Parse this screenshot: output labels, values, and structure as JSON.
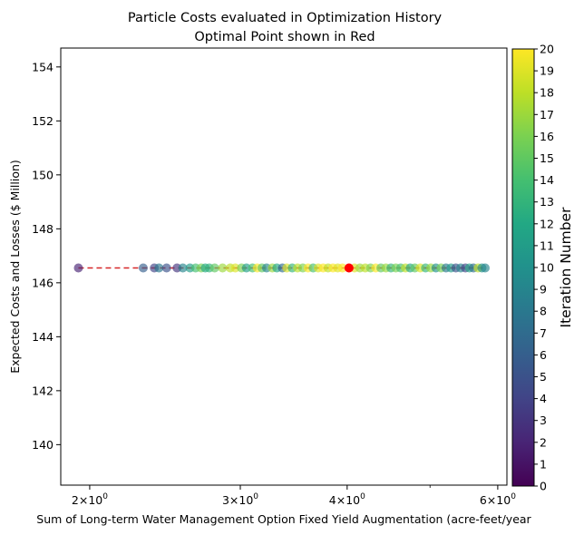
{
  "chart_data": {
    "type": "scatter",
    "title": [
      "Particle Costs evaluated in Optimization History",
      "Optimal Point shown in Red"
    ],
    "xlabel": "Sum of Long-term Water Management Option Fixed Yield Augmentation (acre-feet/year",
    "ylabel": "Expected Costs and Losses ($ Million)",
    "x_scale": "log",
    "xlim": [
      1.85,
      6.15
    ],
    "ylim": [
      138.5,
      154.7
    ],
    "x_major_ticks": [
      {
        "value": 2,
        "base": "2",
        "exp": "0"
      },
      {
        "value": 3,
        "base": "3",
        "exp": "0"
      },
      {
        "value": 4,
        "base": "4",
        "exp": "0"
      },
      {
        "value": 6,
        "base": "6",
        "exp": "0"
      }
    ],
    "x_minor_ticks": [
      5
    ],
    "times_sign": "×",
    "y_ticks": [
      "140",
      "142",
      "144",
      "146",
      "148",
      "150",
      "152",
      "154"
    ],
    "grid": false,
    "points": [
      {
        "x": 1.94,
        "y": 146.55,
        "iter": 2
      },
      {
        "x": 2.31,
        "y": 146.55,
        "iter": 6
      },
      {
        "x": 2.38,
        "y": 146.55,
        "iter": 4
      },
      {
        "x": 2.41,
        "y": 146.55,
        "iter": 8
      },
      {
        "x": 2.46,
        "y": 146.55,
        "iter": 5
      },
      {
        "x": 2.53,
        "y": 146.55,
        "iter": 3
      },
      {
        "x": 2.57,
        "y": 146.55,
        "iter": 9
      },
      {
        "x": 2.62,
        "y": 146.55,
        "iter": 11
      },
      {
        "x": 2.66,
        "y": 146.55,
        "iter": 14
      },
      {
        "x": 2.7,
        "y": 146.55,
        "iter": 16
      },
      {
        "x": 2.73,
        "y": 146.55,
        "iter": 12
      },
      {
        "x": 2.76,
        "y": 146.55,
        "iter": 13
      },
      {
        "x": 2.8,
        "y": 146.55,
        "iter": 15
      },
      {
        "x": 2.86,
        "y": 146.55,
        "iter": 17
      },
      {
        "x": 2.92,
        "y": 146.55,
        "iter": 18
      },
      {
        "x": 2.96,
        "y": 146.55,
        "iter": 19
      },
      {
        "x": 3.01,
        "y": 146.55,
        "iter": 16
      },
      {
        "x": 3.05,
        "y": 146.55,
        "iter": 11
      },
      {
        "x": 3.1,
        "y": 146.55,
        "iter": 14
      },
      {
        "x": 3.14,
        "y": 146.55,
        "iter": 20
      },
      {
        "x": 3.18,
        "y": 146.55,
        "iter": 15
      },
      {
        "x": 3.22,
        "y": 146.55,
        "iter": 9
      },
      {
        "x": 3.27,
        "y": 146.55,
        "iter": 17
      },
      {
        "x": 3.31,
        "y": 146.55,
        "iter": 12
      },
      {
        "x": 3.36,
        "y": 146.55,
        "iter": 7
      },
      {
        "x": 3.4,
        "y": 146.55,
        "iter": 19
      },
      {
        "x": 3.45,
        "y": 146.55,
        "iter": 13
      },
      {
        "x": 3.5,
        "y": 146.55,
        "iter": 18
      },
      {
        "x": 3.55,
        "y": 146.55,
        "iter": 16
      },
      {
        "x": 3.6,
        "y": 146.55,
        "iter": 20
      },
      {
        "x": 3.65,
        "y": 146.55,
        "iter": 14
      },
      {
        "x": 3.7,
        "y": 146.55,
        "iter": 19
      },
      {
        "x": 3.75,
        "y": 146.55,
        "iter": 20
      },
      {
        "x": 3.8,
        "y": 146.55,
        "iter": 18
      },
      {
        "x": 3.85,
        "y": 146.55,
        "iter": 20
      },
      {
        "x": 3.9,
        "y": 146.55,
        "iter": 19
      },
      {
        "x": 3.95,
        "y": 146.55,
        "iter": 20
      },
      {
        "x": 4.08,
        "y": 146.55,
        "iter": 19
      },
      {
        "x": 4.14,
        "y": 146.55,
        "iter": 17
      },
      {
        "x": 4.2,
        "y": 146.55,
        "iter": 18
      },
      {
        "x": 4.26,
        "y": 146.55,
        "iter": 16
      },
      {
        "x": 4.32,
        "y": 146.55,
        "iter": 20
      },
      {
        "x": 4.38,
        "y": 146.55,
        "iter": 15
      },
      {
        "x": 4.44,
        "y": 146.55,
        "iter": 17
      },
      {
        "x": 4.5,
        "y": 146.55,
        "iter": 13
      },
      {
        "x": 4.56,
        "y": 146.55,
        "iter": 16
      },
      {
        "x": 4.62,
        "y": 146.55,
        "iter": 14
      },
      {
        "x": 4.68,
        "y": 146.55,
        "iter": 18
      },
      {
        "x": 4.74,
        "y": 146.55,
        "iter": 12
      },
      {
        "x": 4.8,
        "y": 146.55,
        "iter": 15
      },
      {
        "x": 4.87,
        "y": 146.55,
        "iter": 19
      },
      {
        "x": 4.94,
        "y": 146.55,
        "iter": 13
      },
      {
        "x": 5.01,
        "y": 146.55,
        "iter": 17
      },
      {
        "x": 5.08,
        "y": 146.55,
        "iter": 10
      },
      {
        "x": 5.15,
        "y": 146.55,
        "iter": 16
      },
      {
        "x": 5.22,
        "y": 146.55,
        "iter": 8
      },
      {
        "x": 5.29,
        "y": 146.55,
        "iter": 11
      },
      {
        "x": 5.36,
        "y": 146.55,
        "iter": 5
      },
      {
        "x": 5.43,
        "y": 146.55,
        "iter": 9
      },
      {
        "x": 5.5,
        "y": 146.55,
        "iter": 4
      },
      {
        "x": 5.56,
        "y": 146.55,
        "iter": 12
      },
      {
        "x": 5.62,
        "y": 146.55,
        "iter": 7
      },
      {
        "x": 5.69,
        "y": 146.55,
        "iter": 18
      },
      {
        "x": 5.75,
        "y": 146.55,
        "iter": 10
      },
      {
        "x": 5.8,
        "y": 146.55,
        "iter": 9
      }
    ],
    "optimal_point": {
      "x": 4.02,
      "y": 146.55,
      "color": "#ff0000"
    },
    "optimal_line": {
      "x": [
        1.94,
        5.8
      ],
      "y": 146.55,
      "color": "#d62728",
      "style": "dashed"
    },
    "colorbar": {
      "label": "Iteration Number",
      "ticks": [
        "0",
        "1",
        "2",
        "3",
        "4",
        "5",
        "6",
        "7",
        "8",
        "9",
        "10",
        "11",
        "12",
        "13",
        "14",
        "15",
        "16",
        "17",
        "18",
        "19",
        "20"
      ],
      "range": [
        0,
        20
      ],
      "colormap": "viridis"
    }
  }
}
